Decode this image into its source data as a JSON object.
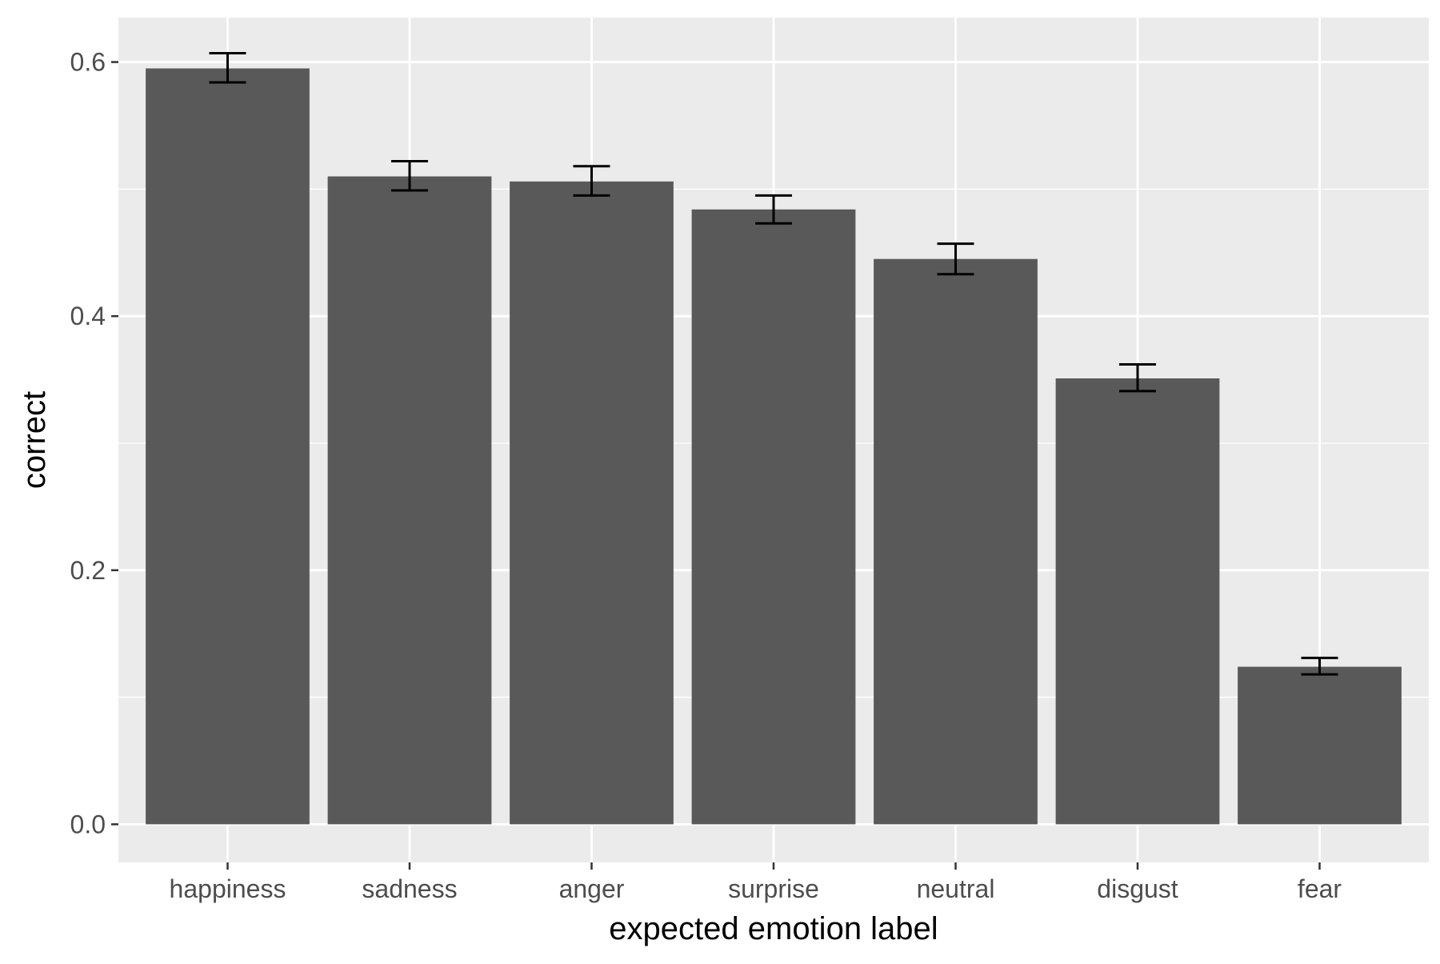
{
  "chart_data": {
    "type": "bar",
    "title": "",
    "xlabel": "expected emotion label",
    "ylabel": "correct",
    "categories": [
      "happiness",
      "sadness",
      "anger",
      "surprise",
      "neutral",
      "disgust",
      "fear"
    ],
    "values": [
      0.595,
      0.51,
      0.506,
      0.484,
      0.445,
      0.351,
      0.124
    ],
    "error_bars": {
      "lower": [
        0.584,
        0.499,
        0.495,
        0.473,
        0.433,
        0.341,
        0.118
      ],
      "upper": [
        0.607,
        0.522,
        0.518,
        0.495,
        0.457,
        0.362,
        0.131
      ]
    },
    "ylim": [
      -0.03,
      0.635
    ],
    "yticks": [
      0.0,
      0.2,
      0.4,
      0.6
    ],
    "ytick_labels": [
      "0.0",
      "0.2",
      "0.4",
      "0.6"
    ],
    "grid": true,
    "legend": "none",
    "colors": {
      "panel_background": "#EBEBEB",
      "grid_major": "#FFFFFF",
      "bar_fill": "#595959",
      "error_bar": "#000000",
      "tick_label": "#4D4D4D",
      "axis_title": "#000000",
      "tick_mark": "#333333"
    }
  }
}
